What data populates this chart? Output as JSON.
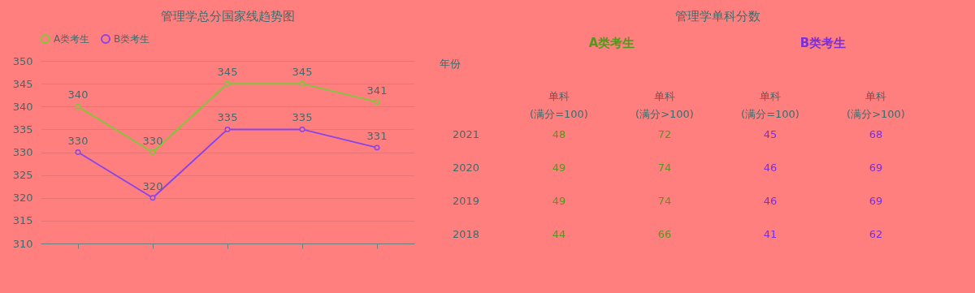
{
  "chart_data": [
    {
      "type": "line",
      "title": "管理学总分国家线趋势图",
      "categories": [
        null,
        null,
        null,
        null,
        null
      ],
      "series": [
        {
          "name": "A类考生",
          "color": "#7cc83a",
          "values": [
            340,
            330,
            345,
            345,
            341
          ]
        },
        {
          "name": "B类考生",
          "color": "#8a45e8",
          "values": [
            330,
            320,
            335,
            335,
            331
          ]
        }
      ],
      "ylim": [
        310,
        350
      ],
      "yticks": [
        310,
        315,
        320,
        325,
        330,
        335,
        340,
        345,
        350
      ],
      "grid": "y",
      "legend": "top",
      "marker": "circle",
      "data_labels": true,
      "tick_labels": "y"
    },
    {
      "type": "heatmap",
      "title": "管理学单科分数",
      "annotations": [
        "A类考生",
        "B类考生"
      ],
      "ylabel": "年份",
      "categories": [
        "单科\n(满分=100)",
        "单科\n(满分>100)",
        "单科\n(满分=100)",
        "单科\n(满分>100)"
      ],
      "y_categories": [
        "2021",
        "2020",
        "2019",
        "2018"
      ],
      "cells": [
        [
          48,
          72,
          45,
          68
        ],
        [
          49,
          74,
          46,
          69
        ],
        [
          49,
          74,
          46,
          69
        ],
        [
          44,
          66,
          41,
          62
        ]
      ],
      "colors": [
        "#4f9a1a",
        "#4f9a1a",
        "#7a2fd8",
        "#7a2fd8"
      ],
      "data_labels": true
    }
  ]
}
